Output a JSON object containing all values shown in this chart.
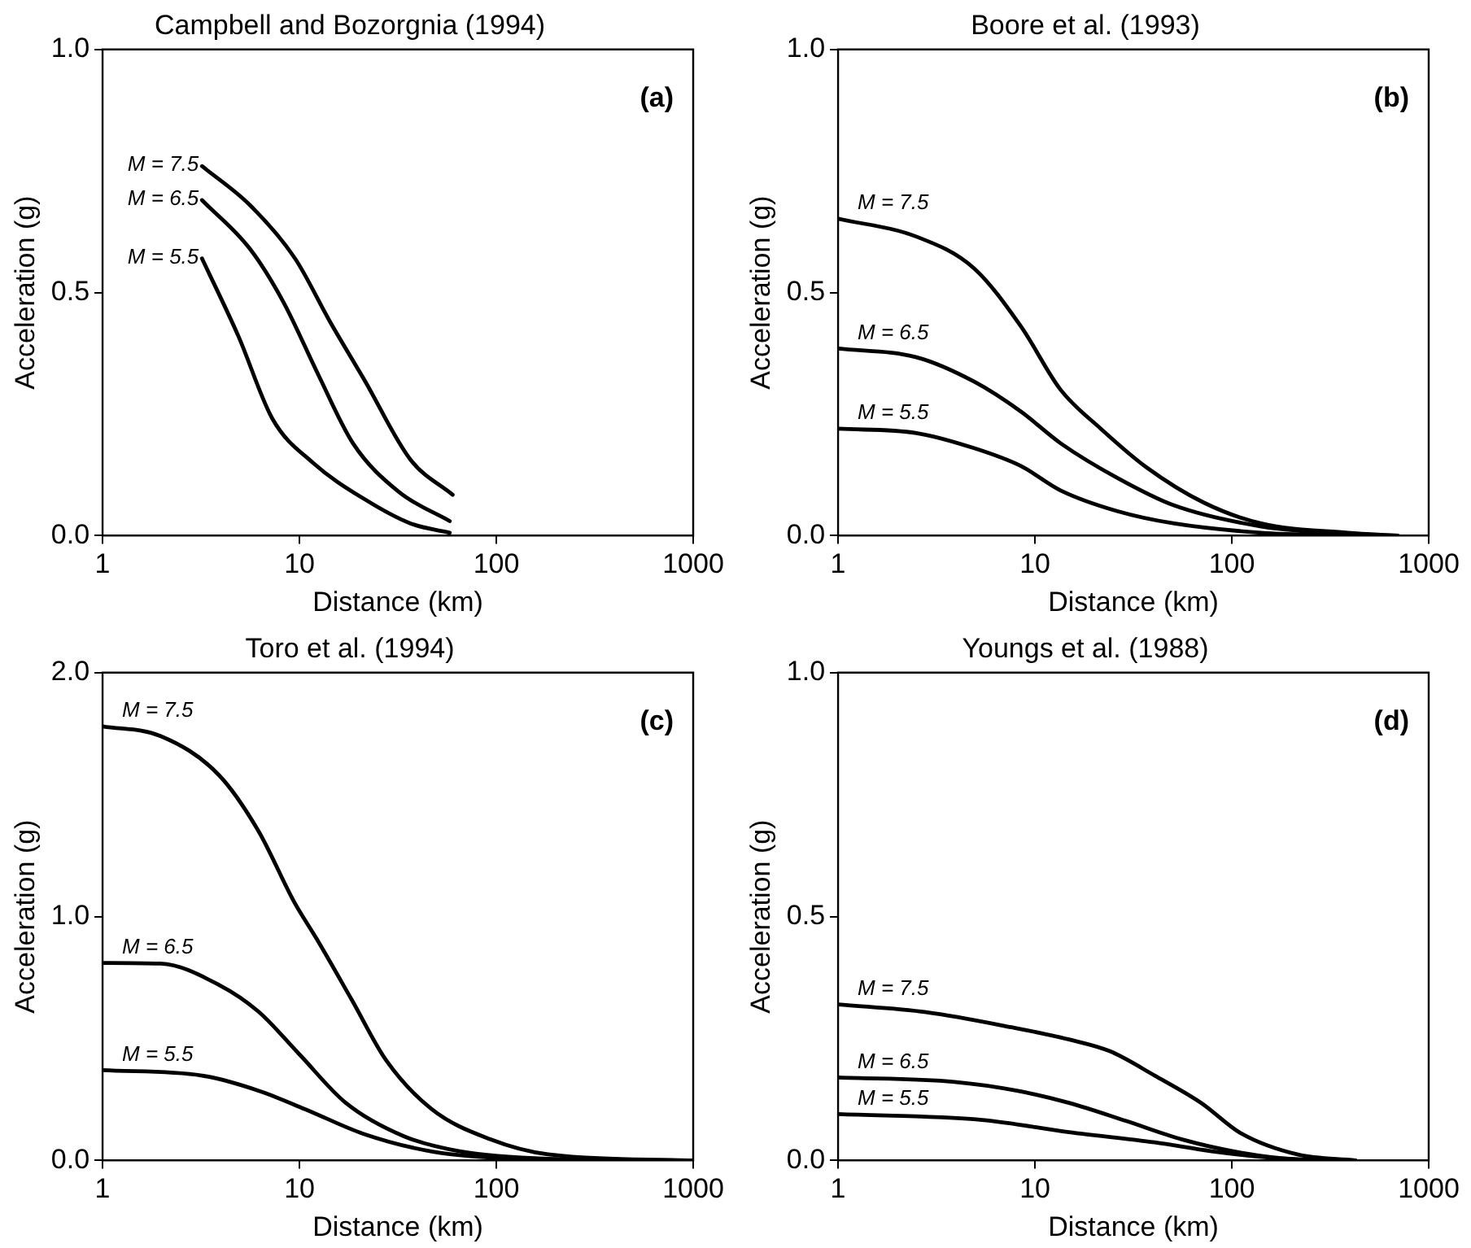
{
  "chart_data": [
    {
      "type": "line",
      "title": "Campbell and Bozorgnia (1994)",
      "xlabel": "Distance (km)",
      "ylabel": "Acceleration (g)",
      "annotations": [
        "(a)"
      ],
      "log": "x",
      "legend": false,
      "grid": false,
      "marker": "none",
      "xlim": [
        1,
        1000
      ],
      "xticks": [
        1,
        10,
        100,
        1000
      ],
      "ylim": [
        0,
        1
      ],
      "yticks": [
        {
          "value": 0,
          "label": "0.0"
        },
        {
          "value": 0.5,
          "label": "0.5"
        },
        {
          "value": 1,
          "label": "1.0"
        }
      ],
      "series": [
        {
          "name": "M = 7.5",
          "color": "#000000",
          "x": [
            3.2,
            5.6,
            9.5,
            14.3,
            21.4,
            36.7,
            60
          ],
          "values": [
            0.76,
            0.68,
            0.57,
            0.44,
            0.32,
            0.156,
            0.084
          ]
        },
        {
          "name": "M = 6.5",
          "color": "#000000",
          "x": [
            3.2,
            5.6,
            8.3,
            12.5,
            18.7,
            32,
            58
          ],
          "values": [
            0.69,
            0.59,
            0.48,
            0.33,
            0.19,
            0.09,
            0.03
          ]
        },
        {
          "name": "M = 5.5",
          "color": "#000000",
          "x": [
            3.2,
            4.9,
            7.3,
            11.7,
            21.4,
            36.7,
            58
          ],
          "values": [
            0.57,
            0.41,
            0.24,
            0.15,
            0.075,
            0.025,
            0.006
          ]
        }
      ]
    },
    {
      "type": "line",
      "title": "Boore et al. (1993)",
      "xlabel": "Distance (km)",
      "ylabel": "Acceleration (g)",
      "annotations": [
        "(b)"
      ],
      "log": "x",
      "legend": false,
      "grid": false,
      "marker": "none",
      "xlim": [
        1,
        1000
      ],
      "xticks": [
        1,
        10,
        100,
        1000
      ],
      "ylim": [
        0,
        1
      ],
      "yticks": [
        {
          "value": 0,
          "label": "0.0"
        },
        {
          "value": 0.5,
          "label": "0.5"
        },
        {
          "value": 1,
          "label": "1.0"
        }
      ],
      "series": [
        {
          "name": "M = 7.5",
          "color": "#000000",
          "x": [
            1,
            2.5,
            4.9,
            8.5,
            13.5,
            21.6,
            37,
            72,
            141,
            388,
            700
          ],
          "values": [
            0.652,
            0.615,
            0.55,
            0.43,
            0.3,
            0.22,
            0.14,
            0.068,
            0.025,
            0.006,
            0
          ]
        },
        {
          "name": "M = 6.5",
          "color": "#000000",
          "x": [
            1,
            2.5,
            4.9,
            8.5,
            13.5,
            26.4,
            51,
            141,
            388
          ],
          "values": [
            0.385,
            0.367,
            0.317,
            0.255,
            0.19,
            0.118,
            0.062,
            0.019,
            0.003
          ]
        },
        {
          "name": "M = 5.5",
          "color": "#000000",
          "x": [
            1,
            2.5,
            4.9,
            8.5,
            13.5,
            26.4,
            51,
            141,
            388
          ],
          "values": [
            0.22,
            0.211,
            0.18,
            0.143,
            0.093,
            0.05,
            0.025,
            0.006,
            0
          ]
        }
      ]
    },
    {
      "type": "line",
      "title": "Toro et al. (1994)",
      "xlabel": "Distance (km)",
      "ylabel": "Acceleration (g)",
      "annotations": [
        "(c)"
      ],
      "log": "x",
      "legend": false,
      "grid": false,
      "marker": "none",
      "xlim": [
        1,
        1000
      ],
      "xticks": [
        1,
        10,
        100,
        1000
      ],
      "ylim": [
        0,
        2
      ],
      "yticks": [
        {
          "value": 0,
          "label": "0.0"
        },
        {
          "value": 1,
          "label": "1.0"
        },
        {
          "value": 2,
          "label": "2.0"
        }
      ],
      "series": [
        {
          "name": "M = 7.5",
          "color": "#000000",
          "x": [
            1,
            1.97,
            3.9,
            6.2,
            9.4,
            12.2,
            18.4,
            27.6,
            47,
            93,
            183,
            1000
          ],
          "values": [
            1.78,
            1.74,
            1.58,
            1.35,
            1.06,
            0.91,
            0.66,
            0.41,
            0.21,
            0.087,
            0.025,
            0
          ]
        },
        {
          "name": "M = 6.5",
          "color": "#000000",
          "x": [
            1,
            1.97,
            3.9,
            6.2,
            10,
            17.2,
            33.8,
            66,
            183,
            1000
          ],
          "values": [
            0.81,
            0.807,
            0.72,
            0.61,
            0.435,
            0.236,
            0.1,
            0.037,
            0.007,
            0
          ]
        },
        {
          "name": "M = 5.5",
          "color": "#000000",
          "x": [
            1,
            3.2,
            6.2,
            10.7,
            21,
            47,
            130,
            1000
          ],
          "values": [
            0.37,
            0.348,
            0.286,
            0.21,
            0.11,
            0.037,
            0.007,
            0
          ]
        }
      ]
    },
    {
      "type": "line",
      "title": "Youngs et al. (1988)",
      "xlabel": "Distance (km)",
      "ylabel": "Acceleration (g)",
      "annotations": [
        "(d)"
      ],
      "log": "x",
      "legend": false,
      "grid": false,
      "marker": "none",
      "xlim": [
        1,
        1000
      ],
      "xticks": [
        1,
        10,
        100,
        1000
      ],
      "ylim": [
        0,
        1
      ],
      "yticks": [
        {
          "value": 0,
          "label": "0.0"
        },
        {
          "value": 0.5,
          "label": "0.5"
        },
        {
          "value": 1,
          "label": "1.0"
        }
      ],
      "series": [
        {
          "name": "M = 7.5",
          "color": "#000000",
          "x": [
            1,
            2.8,
            7.6,
            14.9,
            24,
            40.6,
            69.9,
            111,
            217,
            425
          ],
          "values": [
            0.32,
            0.304,
            0.273,
            0.248,
            0.224,
            0.174,
            0.118,
            0.056,
            0.012,
            0
          ]
        },
        {
          "name": "M = 6.5",
          "color": "#000000",
          "x": [
            1,
            3.9,
            8.1,
            14.9,
            29,
            56,
            111,
            217,
            425
          ],
          "values": [
            0.17,
            0.161,
            0.143,
            0.118,
            0.081,
            0.043,
            0.016,
            0.002,
            0
          ]
        },
        {
          "name": "M = 5.5",
          "color": "#000000",
          "x": [
            1,
            5.4,
            14.9,
            40.6,
            79,
            155,
            305
          ],
          "values": [
            0.095,
            0.083,
            0.058,
            0.037,
            0.019,
            0.006,
            0
          ]
        }
      ]
    }
  ]
}
